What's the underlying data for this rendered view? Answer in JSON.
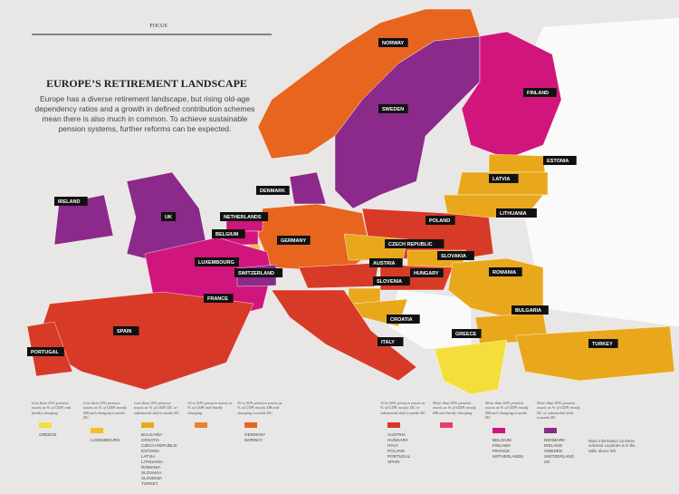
{
  "header": {
    "section": "FOCUS",
    "title": "EUROPE’S RETIREMENT LANDSCAPE",
    "intro_lines": [
      "Europe has a diverse retirement landscape, but rising old-age",
      "dependency ratios and a growth in defined contribution schemes",
      "mean there is also much in common. To achieve sustainable",
      "pension systems, further reforms can be expected."
    ]
  },
  "map_labels": [
    "NORWAY",
    "SWEDEN",
    "FINLAND",
    "ESTONIA",
    "LATVIA",
    "LITHUANIA",
    "DENMARK",
    "IRELAND",
    "UK",
    "NETHERLANDS",
    "BELGIUM",
    "LUXEMBOURG",
    "SWITZERLAND",
    "GERMANY",
    "POLAND",
    "CZECH REPUBLIC",
    "SLOVAKIA",
    "AUSTRIA",
    "HUNGARY",
    "SLOVENIA",
    "ROMANIA",
    "CROATIA",
    "BULGARIA",
    "GREECE",
    "TURKEY",
    "ITALY",
    "FRANCE",
    "SPAIN",
    "PORTUGAL"
  ],
  "legend": [
    {
      "text": "Less than 10% pension assets as % of GDP, and hardly changing",
      "color": "#f3de3c",
      "items": [
        "GREECE"
      ]
    },
    {
      "text": "Less than 10% pension assets as % of GDP, mostly DB and changing towards DC",
      "color": "#f2c12a",
      "items": [
        "LUXEMBOURG"
      ]
    },
    {
      "text": "Less than 10% pension assets as % of GDP, DC or substantial shift towards DC",
      "color": "#e9a81c",
      "items": [
        "BULGARIA",
        "CROATIA",
        "CZECH REPUBLIC",
        "ESTONIA",
        "LATVIA",
        "LITHUANIA",
        "ROMANIA",
        "SLOVAKIA",
        "SLOVENIA",
        "TURKEY"
      ]
    },
    {
      "text": "10 to 50% pension assets as % of GDP, and hardly changing",
      "color": "#e8862a",
      "items": []
    },
    {
      "text": "10 to 50% pension assets as % of GDP, mostly DB and changing towards DC",
      "color": "#e8651f",
      "items": [
        "GERMANY",
        "NORWAY"
      ]
    },
    {
      "text": "10 to 50% pension assets as % of GDP, mostly DC or substantial shift towards DC",
      "color": "#d83a28",
      "items": [
        "AUSTRIA",
        "HUNGARY",
        "ITALY",
        "POLAND",
        "PORTUGAL",
        "SPAIN"
      ]
    },
    {
      "text": "More than 50% pension assets as % of GDP, mostly DB and hardly changing",
      "color": "#e4416a",
      "items": []
    },
    {
      "text": "More than 50% pension assets as % of GDP, mostly DB and changing towards DC",
      "color": "#d0167c",
      "items": [
        "BELGIUM",
        "FINLAND",
        "FRANCE",
        "NETHERLANDS"
      ]
    },
    {
      "text": "More than 50% pension assets as % of GDP, mostly DC or substantial shift towards DC",
      "color": "#8b2a8a",
      "items": [
        "DENMARK",
        "IRELAND",
        "SWEDEN",
        "SWITZERLAND",
        "UK"
      ]
    }
  ],
  "footnote": "More information on these selected countries is in the table above left."
}
